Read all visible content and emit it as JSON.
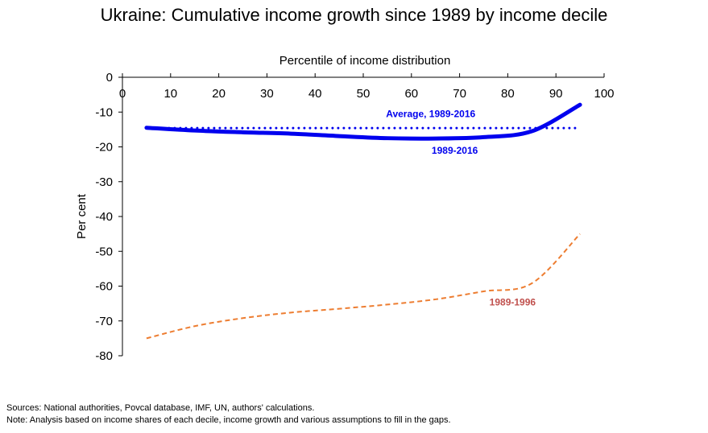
{
  "chart_data": {
    "type": "line",
    "title": "Ukraine: Cumulative income growth since 1989 by income decile",
    "xlabel": "Percentile of income distribution",
    "ylabel": "Per cent",
    "xlim": [
      0,
      100
    ],
    "ylim": [
      -80,
      0
    ],
    "x_axis_position": "top",
    "x_ticks": [
      0,
      10,
      20,
      30,
      40,
      50,
      60,
      70,
      80,
      90,
      100
    ],
    "y_ticks": [
      0,
      -10,
      -20,
      -30,
      -40,
      -50,
      -60,
      -70,
      -80
    ],
    "grid": false,
    "legend": "none",
    "series": [
      {
        "name": "1989-2016",
        "color": "#0000ee",
        "style": "solid-thick",
        "x": [
          5,
          15,
          25,
          35,
          45,
          55,
          65,
          75,
          85,
          95
        ],
        "y": [
          -14.5,
          -15.3,
          -15.8,
          -16.2,
          -16.9,
          -17.5,
          -17.6,
          -17.2,
          -15.5,
          -7.9
        ]
      },
      {
        "name": "Average, 1989-2016",
        "color": "#0000ee",
        "style": "dotted",
        "x": [
          5,
          95
        ],
        "y": [
          -14.6,
          -14.6
        ]
      },
      {
        "name": "1989-1996",
        "color": "#ed7d31",
        "style": "dashed",
        "x": [
          5,
          15,
          25,
          35,
          45,
          55,
          65,
          75,
          85,
          95
        ],
        "y": [
          -75.0,
          -71.5,
          -69.2,
          -67.6,
          -66.5,
          -65.3,
          -63.8,
          -61.5,
          -59.2,
          -45.0
        ]
      }
    ],
    "annotations": [
      {
        "text": "Average, 1989-2016",
        "x": 64,
        "y": -11.5,
        "color": "#0000ee"
      },
      {
        "text": "1989-2016",
        "x": 69,
        "y": -22,
        "color": "#0000ee"
      },
      {
        "text": "1989-1996",
        "x": 81,
        "y": -65.5,
        "color": "#c0504d"
      }
    ]
  },
  "notes": {
    "sources": "Sources: National authorities, Povcal database, IMF, UN, authors' calculations.",
    "note": "Note: Analysis based on income shares of each decile, income growth and various assumptions to fill in the gaps."
  }
}
